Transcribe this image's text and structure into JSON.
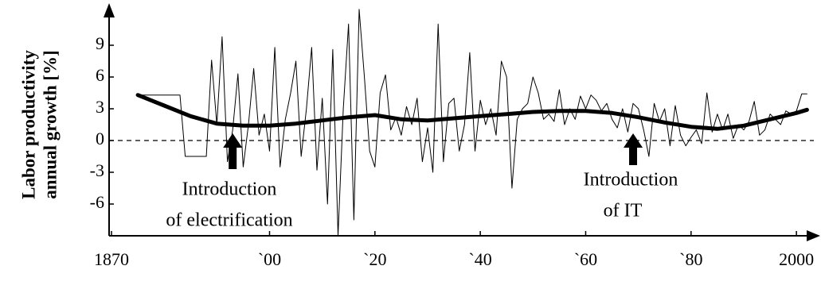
{
  "chart_data": {
    "type": "line",
    "y_label": [
      "Labor productivity",
      "annual growth [%]"
    ],
    "xlim": [
      1870,
      2003
    ],
    "ylim": [
      -9,
      12
    ],
    "xticks": [
      {
        "value": 1870,
        "label": "1870"
      },
      {
        "value": 1900,
        "label": "`00"
      },
      {
        "value": 1920,
        "label": "`20"
      },
      {
        "value": 1940,
        "label": "`40"
      },
      {
        "value": 1960,
        "label": "`60"
      },
      {
        "value": 1980,
        "label": "`80"
      },
      {
        "value": 2000,
        "label": "2000"
      }
    ],
    "yticks": [
      -6,
      -3,
      0,
      3,
      6,
      9
    ],
    "zero_line": true,
    "series": [
      {
        "color": "#000000",
        "x": [
          1875,
          1876,
          1877,
          1878,
          1879,
          1880,
          1881,
          1882,
          1883,
          1884,
          1885,
          1886,
          1887,
          1888,
          1889,
          1890,
          1891,
          1892,
          1893,
          1894,
          1895,
          1896,
          1897,
          1898,
          1899,
          1900,
          1901,
          1902,
          1903,
          1904,
          1905,
          1906,
          1907,
          1908,
          1909,
          1910,
          1911,
          1912,
          1913,
          1914,
          1915,
          1916,
          1917,
          1918,
          1919,
          1920,
          1921,
          1922,
          1923,
          1924,
          1925,
          1926,
          1927,
          1928,
          1929,
          1930,
          1931,
          1932,
          1933,
          1934,
          1935,
          1936,
          1937,
          1938,
          1939,
          1940,
          1941,
          1942,
          1943,
          1944,
          1945,
          1946,
          1947,
          1948,
          1949,
          1950,
          1951,
          1952,
          1953,
          1954,
          1955,
          1956,
          1957,
          1958,
          1959,
          1960,
          1961,
          1962,
          1963,
          1964,
          1965,
          1966,
          1967,
          1968,
          1969,
          1970,
          1971,
          1972,
          1973,
          1974,
          1975,
          1976,
          1977,
          1978,
          1979,
          1980,
          1981,
          1982,
          1983,
          1984,
          1985,
          1986,
          1987,
          1988,
          1989,
          1990,
          1991,
          1992,
          1993,
          1994,
          1995,
          1996,
          1997,
          1998,
          1999,
          2000,
          2001,
          2002
        ],
        "values": [
          4.3,
          4.3,
          4.3,
          4.3,
          4.3,
          4.3,
          4.3,
          4.3,
          4.3,
          -1.5,
          -1.5,
          -1.5,
          -1.5,
          -1.5,
          7.6,
          1.5,
          9.8,
          -2.0,
          1.0,
          6.3,
          -2.5,
          1.5,
          6.8,
          0.5,
          2.5,
          -1.0,
          8.8,
          -2.5,
          2.0,
          4.5,
          7.5,
          -1.5,
          3.0,
          8.8,
          -2.8,
          4.0,
          -6.0,
          8.6,
          -9.0,
          3.0,
          11.0,
          -7.5,
          12.4,
          6.0,
          -1.0,
          -2.5,
          4.5,
          6.2,
          1.0,
          2.2,
          0.5,
          3.2,
          1.5,
          4.0,
          -2.0,
          1.2,
          -3.0,
          11.0,
          -2.0,
          3.5,
          4.0,
          -1.0,
          1.5,
          8.3,
          -1.0,
          3.8,
          1.5,
          3.0,
          0.5,
          7.5,
          6.0,
          -4.5,
          2.0,
          3.0,
          3.5,
          6.0,
          4.5,
          2.0,
          2.5,
          1.8,
          4.8,
          1.5,
          3.0,
          2.0,
          4.2,
          3.0,
          4.3,
          3.8,
          2.8,
          3.5,
          2.0,
          1.2,
          3.0,
          0.8,
          3.5,
          3.0,
          1.0,
          -1.5,
          3.5,
          1.8,
          3.0,
          -0.5,
          3.3,
          0.5,
          -0.5,
          0.3,
          1.0,
          -0.3,
          4.5,
          0.8,
          2.5,
          1.0,
          2.5,
          0.2,
          1.5,
          1.0,
          1.8,
          3.7,
          0.5,
          1.0,
          2.5,
          2.0,
          1.5,
          2.8,
          2.5,
          2.8,
          4.4,
          4.4
        ]
      },
      {
        "color": "#000000",
        "x": [
          1875,
          1880,
          1885,
          1890,
          1895,
          1900,
          1905,
          1910,
          1915,
          1920,
          1925,
          1930,
          1935,
          1940,
          1945,
          1950,
          1955,
          1960,
          1965,
          1970,
          1975,
          1980,
          1985,
          1990,
          1995,
          2000,
          2002
        ],
        "values": [
          4.3,
          3.3,
          2.3,
          1.6,
          1.4,
          1.4,
          1.6,
          1.9,
          2.2,
          2.4,
          2.0,
          1.9,
          2.1,
          2.3,
          2.5,
          2.7,
          2.8,
          2.8,
          2.6,
          2.2,
          1.7,
          1.3,
          1.1,
          1.4,
          2.0,
          2.6,
          2.9
        ]
      }
    ],
    "annotations": [
      {
        "text": [
          "Introduction",
          "of electrification"
        ],
        "x": 1893
      },
      {
        "text": [
          "Introduction",
          "of IT"
        ],
        "x": 1969
      }
    ]
  }
}
